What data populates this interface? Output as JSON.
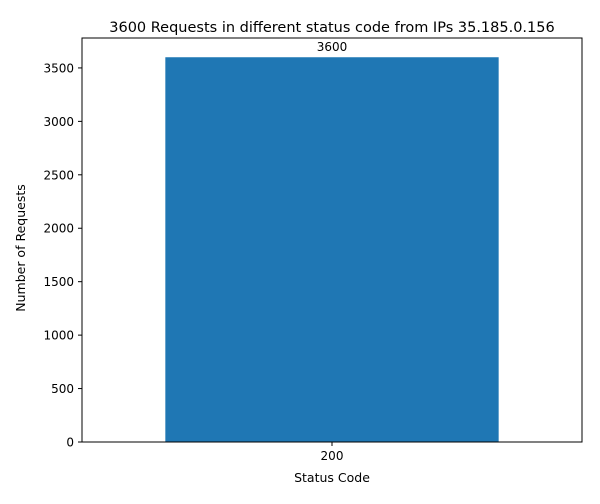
{
  "chart_data": {
    "type": "bar",
    "title": "3600 Requests in different status code from IPs 35.185.0.156",
    "xlabel": "Status Code",
    "ylabel": "Number of Requests",
    "categories": [
      "200"
    ],
    "values": [
      3600
    ],
    "data_labels": [
      "3600"
    ],
    "ylim": [
      0,
      3780
    ],
    "yticks": [
      0,
      500,
      1000,
      1500,
      2000,
      2500,
      3000,
      3500
    ],
    "ytick_labels": [
      "0",
      "500",
      "1000",
      "1500",
      "2000",
      "2500",
      "3000",
      "3500"
    ],
    "grid": false,
    "legend": "none",
    "colors": {
      "bar": "#1f77b4",
      "axis": "#000000",
      "background": "#ffffff"
    }
  }
}
